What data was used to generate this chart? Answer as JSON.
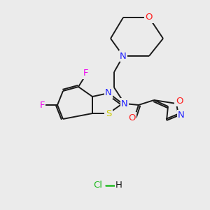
{
  "background_color": "#ebebeb",
  "bond_color": "#1a1a1a",
  "atom_colors": {
    "N": "#2020ff",
    "O": "#ff2020",
    "S": "#cccc00",
    "F": "#ee00ee",
    "Cl": "#22bb22",
    "C": "#1a1a1a",
    "H": "#1a1a1a"
  },
  "lw": 1.4,
  "fontsize": 9.5
}
